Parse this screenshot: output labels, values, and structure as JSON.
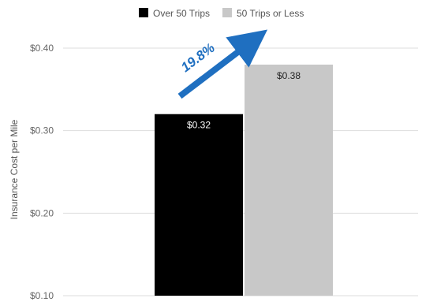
{
  "chart_data": {
    "type": "bar",
    "categories": [
      ""
    ],
    "series": [
      {
        "name": "Over 50 Trips",
        "values": [
          0.32
        ],
        "color": "#000000",
        "label": "$0.32",
        "label_color": "#ffffff"
      },
      {
        "name": "50 Trips or Less",
        "values": [
          0.38
        ],
        "color": "#c8c8c8",
        "label": "$0.38",
        "label_color": "#222222"
      }
    ],
    "ylabel": "Insurance Cost per Mile",
    "ylim": [
      0.1,
      0.4
    ],
    "yticks": [
      {
        "value": 0.4,
        "label": "$0.40"
      },
      {
        "value": 0.3,
        "label": "$0.30"
      },
      {
        "value": 0.2,
        "label": "$0.20"
      },
      {
        "value": 0.1,
        "label": "$0.10"
      }
    ],
    "grid": true,
    "legend_position": "top-center",
    "annotation": {
      "text": "19.8%",
      "color": "#1f6fc0"
    }
  }
}
